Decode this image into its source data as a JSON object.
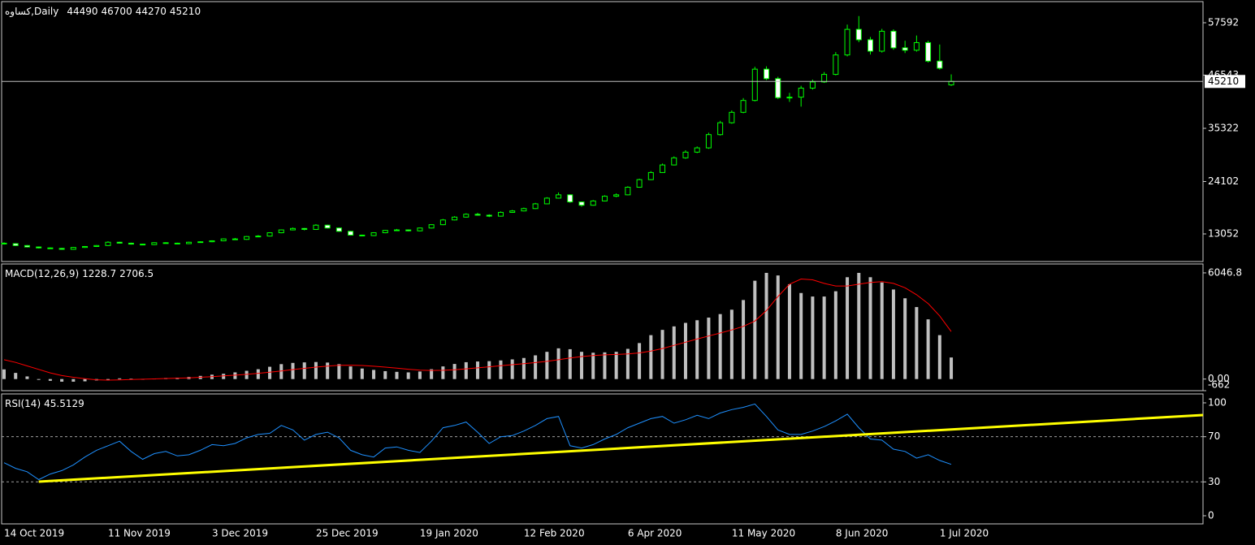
{
  "chart_data": [
    {
      "type": "candlestick",
      "symbol": "کساوه,Daily",
      "open": [
        11100,
        11000,
        10600,
        10300,
        10100,
        10000,
        9800,
        10200,
        10400,
        10600,
        11300,
        11100,
        10900,
        10800,
        11200,
        11100,
        11000,
        11300,
        11400,
        11600,
        12000,
        11900,
        12500,
        12600,
        13300,
        13900,
        14200,
        14000,
        14900,
        14300,
        13600,
        12800,
        12700,
        13300,
        13800,
        13900,
        13700,
        14300,
        15000,
        16000,
        16600,
        17200,
        17000,
        16800,
        17600,
        17900,
        18400,
        19400,
        20600,
        21300,
        19800,
        19100,
        20000,
        21000,
        21300,
        22900,
        24500,
        26000,
        27600,
        29100,
        30300,
        31200,
        34000,
        36500,
        38700,
        41200,
        47800,
        45800,
        41800,
        41900,
        43800,
        45100,
        46700,
        50800,
        56200,
        54000,
        51600,
        55800,
        52300,
        51800,
        53400,
        49500,
        44490
      ],
      "high": [
        11300,
        11100,
        10700,
        10400,
        10200,
        10100,
        10300,
        10500,
        10700,
        11500,
        11400,
        11200,
        11000,
        11300,
        11300,
        11200,
        11400,
        11500,
        11700,
        12100,
        12200,
        12600,
        12800,
        13400,
        14000,
        14400,
        14300,
        15100,
        15000,
        14400,
        13700,
        12900,
        13400,
        13900,
        14100,
        14000,
        14400,
        15100,
        16200,
        16800,
        17400,
        17500,
        17200,
        17800,
        18100,
        18600,
        19600,
        20800,
        21800,
        21400,
        19900,
        20200,
        21200,
        21600,
        23100,
        24700,
        26300,
        27900,
        29400,
        30700,
        31500,
        34400,
        36900,
        39100,
        41700,
        48300,
        48400,
        46200,
        42800,
        44300,
        45600,
        47200,
        51400,
        57200,
        59000,
        54600,
        56300,
        56200,
        53800,
        54900,
        53800,
        53000,
        46700
      ],
      "low": [
        10800,
        10500,
        10200,
        10000,
        9900,
        9700,
        9700,
        10100,
        10300,
        10500,
        11000,
        10800,
        10700,
        10700,
        11000,
        10900,
        10900,
        11200,
        11300,
        11500,
        11800,
        11800,
        12400,
        12500,
        13200,
        13800,
        13800,
        13900,
        14200,
        13500,
        12700,
        12600,
        12600,
        13200,
        13700,
        13600,
        13600,
        14200,
        14900,
        15900,
        16500,
        16900,
        16600,
        16700,
        17500,
        17800,
        18300,
        19300,
        20500,
        19600,
        18800,
        19000,
        19900,
        20800,
        21200,
        22800,
        24400,
        25900,
        27500,
        28900,
        30100,
        31000,
        33800,
        36300,
        38500,
        41000,
        45500,
        41500,
        40900,
        39900,
        43500,
        44900,
        46500,
        50500,
        53500,
        50900,
        51300,
        51900,
        51200,
        51500,
        49200,
        47700,
        44270
      ],
      "close": [
        11000,
        10600,
        10300,
        10100,
        10000,
        9800,
        10200,
        10400,
        10600,
        11300,
        11100,
        10900,
        10800,
        11200,
        11100,
        11000,
        11300,
        11400,
        11600,
        12000,
        11900,
        12500,
        12600,
        13300,
        13900,
        14200,
        14000,
        14900,
        14300,
        13600,
        12800,
        12700,
        13300,
        13800,
        13900,
        13700,
        14300,
        15000,
        16000,
        16600,
        17200,
        17000,
        16800,
        17600,
        17900,
        18400,
        19400,
        20600,
        21300,
        19800,
        19100,
        20000,
        21000,
        21300,
        22900,
        24500,
        26000,
        27600,
        29100,
        30300,
        31200,
        34000,
        36500,
        38700,
        41200,
        47800,
        45800,
        41800,
        41900,
        43800,
        45100,
        46700,
        50800,
        56200,
        54000,
        51600,
        55800,
        52300,
        51800,
        53400,
        49500,
        48000,
        45210
      ],
      "outline_color": "#00ff00",
      "bull_color": "#000000",
      "bear_color": "#ffffff",
      "price_line_color": "#c0c0c0",
      "ylim": [
        7228,
        62046
      ],
      "yticks": [
        13052,
        24102,
        35322,
        46543,
        57592
      ]
    },
    {
      "type": "macd",
      "title": "MACD(12,26,9)",
      "histogram": {
        "color": "#c0c0c0",
        "values": [
          550,
          350,
          150,
          0,
          -100,
          -150,
          -150,
          -130,
          -80,
          0,
          40,
          20,
          10,
          30,
          60,
          80,
          120,
          180,
          250,
          300,
          380,
          470,
          560,
          700,
          850,
          920,
          950,
          970,
          940,
          850,
          720,
          600,
          520,
          450,
          410,
          380,
          430,
          560,
          720,
          860,
          960,
          1000,
          1020,
          1060,
          1120,
          1200,
          1350,
          1550,
          1750,
          1700,
          1550,
          1500,
          1520,
          1550,
          1720,
          2050,
          2500,
          2800,
          3000,
          3200,
          3350,
          3500,
          3700,
          3950,
          4500,
          5600,
          6046.8,
          5900,
          5400,
          4900,
          4700,
          4700,
          5000,
          5800,
          6046.8,
          5800,
          5500,
          5100,
          4600,
          4100,
          3400,
          2500,
          1228.7
        ]
      },
      "signal": {
        "color": "#ff0000",
        "values": [
          1100,
          950,
          750,
          550,
          350,
          200,
          100,
          20,
          -40,
          -60,
          -50,
          -30,
          -10,
          10,
          30,
          50,
          70,
          100,
          140,
          180,
          220,
          270,
          330,
          390,
          460,
          540,
          610,
          680,
          740,
          780,
          790,
          770,
          730,
          680,
          620,
          560,
          510,
          490,
          500,
          530,
          580,
          640,
          700,
          760,
          820,
          880,
          940,
          1010,
          1100,
          1200,
          1280,
          1340,
          1380,
          1400,
          1430,
          1490,
          1590,
          1740,
          1920,
          2100,
          2280,
          2450,
          2620,
          2800,
          3000,
          3300,
          3900,
          4700,
          5400,
          5700,
          5650,
          5450,
          5300,
          5300,
          5400,
          5500,
          5550,
          5450,
          5200,
          4800,
          4300,
          3600,
          2706.5
        ]
      },
      "ylim": [
        -662,
        6554
      ],
      "yticks": [
        6046.8,
        {
          "value": 0,
          "label": "0.00"
        },
        -662
      ]
    },
    {
      "type": "line",
      "title": "RSI(14)",
      "color": "#1e90ff",
      "values": [
        47,
        42,
        39,
        32,
        37,
        40,
        45,
        52,
        58,
        62,
        66,
        57,
        50,
        55,
        57,
        53,
        54,
        58,
        63,
        62,
        64,
        69,
        72,
        73,
        80,
        76,
        67,
        72,
        74,
        69,
        58,
        54,
        52,
        60,
        61,
        58,
        56,
        66,
        78,
        80,
        83,
        74,
        64,
        70,
        71,
        75,
        80,
        86,
        88,
        62,
        60,
        63,
        68,
        72,
        78,
        82,
        86,
        88,
        82,
        85,
        89,
        86,
        91,
        94,
        96,
        99,
        88,
        76,
        72,
        72,
        75,
        79,
        84,
        90,
        78,
        68,
        67,
        59,
        57,
        51,
        54,
        49,
        45.5129
      ],
      "categories": [
        "14 Oct 2019",
        null,
        null,
        null,
        null,
        null,
        null,
        null,
        null,
        "11 Nov 2019",
        null,
        null,
        null,
        null,
        null,
        null,
        null,
        null,
        "3 Dec 2019",
        null,
        null,
        null,
        null,
        null,
        null,
        null,
        null,
        "25 Dec 2019",
        null,
        null,
        null,
        null,
        null,
        null,
        null,
        null,
        "19 Jan 2020",
        null,
        null,
        null,
        null,
        null,
        null,
        null,
        null,
        "12 Feb 2020",
        null,
        null,
        null,
        null,
        null,
        null,
        null,
        null,
        "6 Apr 2020",
        null,
        null,
        null,
        null,
        null,
        null,
        null,
        null,
        "11 May 2020",
        null,
        null,
        null,
        null,
        null,
        null,
        null,
        null,
        "8 Jun 2020",
        null,
        null,
        null,
        null,
        null,
        null,
        null,
        null,
        "1 Jul 2020",
        null
      ],
      "levels": [
        70,
        30
      ],
      "level_color": "#a0a0a0",
      "trendline": {
        "start": [
          3,
          30.2
        ],
        "end": [
          103.8,
          89.2
        ],
        "color": "#ffff00"
      },
      "ylim": [
        -7.2,
        107.9
      ],
      "yticks": [
        100,
        70,
        30,
        0
      ]
    }
  ]
}
